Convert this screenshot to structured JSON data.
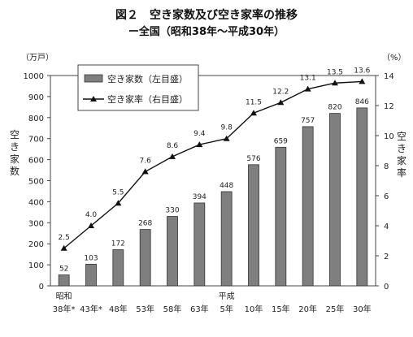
{
  "title": "図２　空き家数及び空き家率の推移",
  "subtitle": "ー全国（昭和38年～平成30年）",
  "chart_data": {
    "type": "bar+line",
    "categories": [
      "38年*",
      "43年*",
      "48年",
      "53年",
      "58年",
      "63年",
      "5年",
      "10年",
      "15年",
      "20年",
      "25年",
      "30年"
    ],
    "era_labels": [
      {
        "index": 0,
        "text": "昭和"
      },
      {
        "index": 6,
        "text": "平成"
      }
    ],
    "left_axis": {
      "unit": "（万戸）",
      "label": "空き家数",
      "min": 0,
      "max": 1000,
      "step": 100
    },
    "right_axis": {
      "unit": "（%）",
      "label": "空き家率",
      "min": 0,
      "max": 14,
      "step": 2
    },
    "series": [
      {
        "name": "空き家数（左目盛）",
        "type": "bar",
        "axis": "left",
        "values": [
          52,
          103,
          172,
          268,
          330,
          394,
          448,
          576,
          659,
          757,
          820,
          846
        ]
      },
      {
        "name": "空き家率（右目盛）",
        "type": "line",
        "axis": "right",
        "values": [
          2.5,
          4.0,
          5.5,
          7.6,
          8.6,
          9.4,
          9.8,
          11.5,
          12.2,
          13.1,
          13.5,
          13.6
        ],
        "labels": [
          "2.5",
          "4.0",
          "5.5",
          "7.6",
          "8.6",
          "9.4",
          "9.8",
          "11.5",
          "12.2",
          "13.1",
          "13.5",
          "13.6"
        ]
      }
    ],
    "legend_position": "top-left",
    "grid": false,
    "colors": {
      "bar": "#7f7f7f",
      "bar_stroke": "#333333",
      "line": "#111111"
    }
  }
}
